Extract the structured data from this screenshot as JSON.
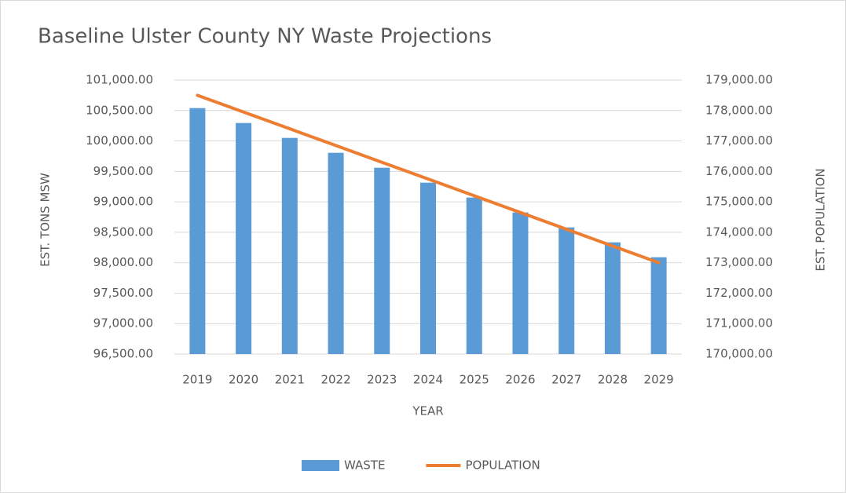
{
  "chart_data": {
    "type": "bar",
    "title": "Baseline Ulster County NY Waste Projections",
    "xlabel": "YEAR",
    "ylabel": "EST. TONS MSW",
    "y2label": "EST. POPULATION",
    "categories": [
      "2019",
      "2020",
      "2021",
      "2022",
      "2023",
      "2024",
      "2025",
      "2026",
      "2027",
      "2028",
      "2029"
    ],
    "series": [
      {
        "name": "WASTE",
        "type": "bar",
        "color": "#5b9bd5",
        "values": [
          100540,
          100295,
          100050,
          99805,
          99560,
          99315,
          99070,
          98825,
          98580,
          98335,
          98090
        ]
      },
      {
        "name": "POPULATION",
        "type": "line",
        "axis": "y2",
        "color": "#ed7d31",
        "values": [
          178500,
          177950,
          177400,
          176850,
          176300,
          175750,
          175200,
          174650,
          174100,
          173550,
          173000
        ]
      }
    ],
    "ylim": [
      96500,
      101000
    ],
    "yticks": [
      {
        "value": 96500,
        "label": "96,500.00"
      },
      {
        "value": 97000,
        "label": "97,000.00"
      },
      {
        "value": 97500,
        "label": "97,500.00"
      },
      {
        "value": 98000,
        "label": "98,000.00"
      },
      {
        "value": 98500,
        "label": "98,500.00"
      },
      {
        "value": 99000,
        "label": "99,000.00"
      },
      {
        "value": 99500,
        "label": "99,500.00"
      },
      {
        "value": 100000,
        "label": "100,000.00"
      },
      {
        "value": 100500,
        "label": "100,500.00"
      },
      {
        "value": 101000,
        "label": "101,000.00"
      }
    ],
    "y2lim": [
      170000,
      179000
    ],
    "y2ticks": [
      {
        "value": 170000,
        "label": "170,000.00"
      },
      {
        "value": 171000,
        "label": "171,000.00"
      },
      {
        "value": 172000,
        "label": "172,000.00"
      },
      {
        "value": 173000,
        "label": "173,000.00"
      },
      {
        "value": 174000,
        "label": "174,000.00"
      },
      {
        "value": 175000,
        "label": "175,000.00"
      },
      {
        "value": 176000,
        "label": "176,000.00"
      },
      {
        "value": 177000,
        "label": "177,000.00"
      },
      {
        "value": 178000,
        "label": "178,000.00"
      },
      {
        "value": 179000,
        "label": "179,000.00"
      }
    ],
    "grid": true,
    "legend": "bottom"
  }
}
